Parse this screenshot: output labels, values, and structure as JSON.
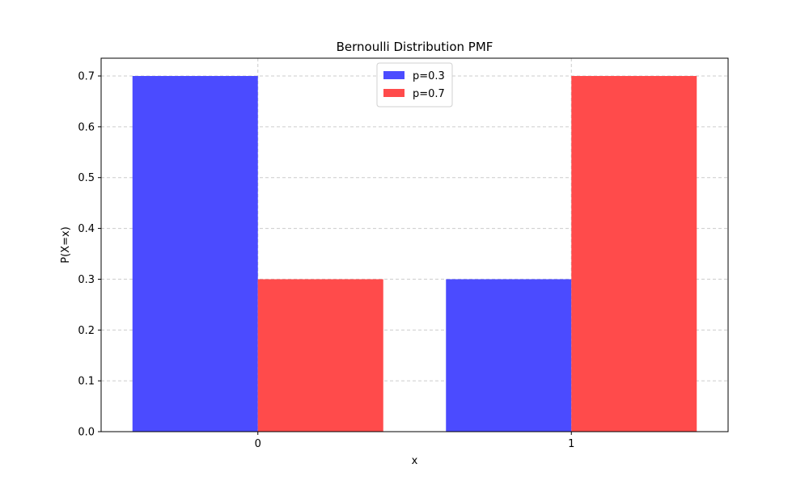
{
  "chart_data": {
    "type": "bar",
    "title": "Bernoulli Distribution PMF",
    "xlabel": "x",
    "ylabel": "P(X=x)",
    "categories": [
      "0",
      "1"
    ],
    "series": [
      {
        "name": "p=0.3",
        "values": [
          0.7,
          0.3
        ],
        "color": "#4b4bff"
      },
      {
        "name": "p=0.7",
        "values": [
          0.3,
          0.7
        ],
        "color": "#ff4b4b"
      }
    ],
    "ylim": [
      0,
      0.735
    ],
    "yticks": [
      "0.0",
      "0.1",
      "0.2",
      "0.3",
      "0.4",
      "0.5",
      "0.6",
      "0.7"
    ],
    "grid": true,
    "legend_position": "top-center"
  }
}
